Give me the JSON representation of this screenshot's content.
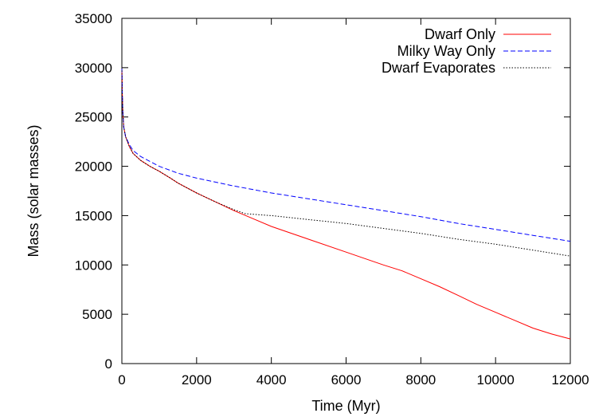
{
  "chart_data": {
    "type": "line",
    "title": "",
    "xlabel": "Time (Myr)",
    "ylabel": "Mass (solar masses)",
    "xlim": [
      0,
      12000
    ],
    "ylim": [
      0,
      35000
    ],
    "x_ticks": [
      0,
      2000,
      4000,
      6000,
      8000,
      10000,
      12000
    ],
    "x_tick_labels": [
      "0",
      "2000",
      "4000",
      "6000",
      "8000",
      "10000",
      "12000"
    ],
    "y_ticks": [
      0,
      5000,
      10000,
      15000,
      20000,
      25000,
      30000,
      35000
    ],
    "y_tick_labels": [
      "0",
      "5000",
      "10000",
      "15000",
      "20000",
      "25000",
      "30000",
      "35000"
    ],
    "grid": false,
    "legend_position": "top-right",
    "series": [
      {
        "name": "Dwarf Only",
        "color": "#ff0000",
        "dash": "solid",
        "x": [
          0,
          10,
          25,
          50,
          100,
          200,
          300,
          500,
          750,
          1000,
          1300,
          1500,
          2000,
          2500,
          3000,
          3500,
          4000,
          5000,
          6000,
          7000,
          7500,
          8000,
          8500,
          9000,
          9500,
          10000,
          10500,
          11000,
          11500,
          12000
        ],
        "y": [
          30000,
          27500,
          25500,
          24000,
          23000,
          22000,
          21300,
          20600,
          20000,
          19500,
          18800,
          18300,
          17300,
          16400,
          15500,
          14700,
          13900,
          12600,
          11300,
          10000,
          9400,
          8600,
          7800,
          6900,
          6000,
          5200,
          4400,
          3600,
          3000,
          2500
        ]
      },
      {
        "name": "Milky Way Only",
        "color": "#0000ff",
        "dash": "dashed",
        "x": [
          0,
          10,
          25,
          50,
          100,
          200,
          300,
          500,
          750,
          1000,
          1500,
          2000,
          3000,
          4000,
          5000,
          6000,
          7000,
          8000,
          9000,
          10000,
          11000,
          12000
        ],
        "y": [
          30000,
          27500,
          25500,
          24000,
          23000,
          22200,
          21600,
          21000,
          20500,
          20000,
          19300,
          18800,
          18000,
          17300,
          16700,
          16100,
          15500,
          14900,
          14200,
          13600,
          13000,
          12400
        ]
      },
      {
        "name": "Dwarf Evaporates",
        "color": "#000000",
        "dash": "dotted",
        "x": [
          0,
          10,
          25,
          50,
          100,
          200,
          300,
          500,
          750,
          1000,
          1300,
          1500,
          2000,
          2500,
          3000,
          3300,
          4000,
          5000,
          6000,
          7000,
          8000,
          9000,
          10000,
          11000,
          12000
        ],
        "y": [
          30000,
          27500,
          25500,
          24000,
          23000,
          22000,
          21300,
          20600,
          20000,
          19500,
          18800,
          18300,
          17300,
          16400,
          15600,
          15200,
          15000,
          14600,
          14200,
          13700,
          13200,
          12600,
          12100,
          11500,
          10900
        ]
      }
    ]
  }
}
